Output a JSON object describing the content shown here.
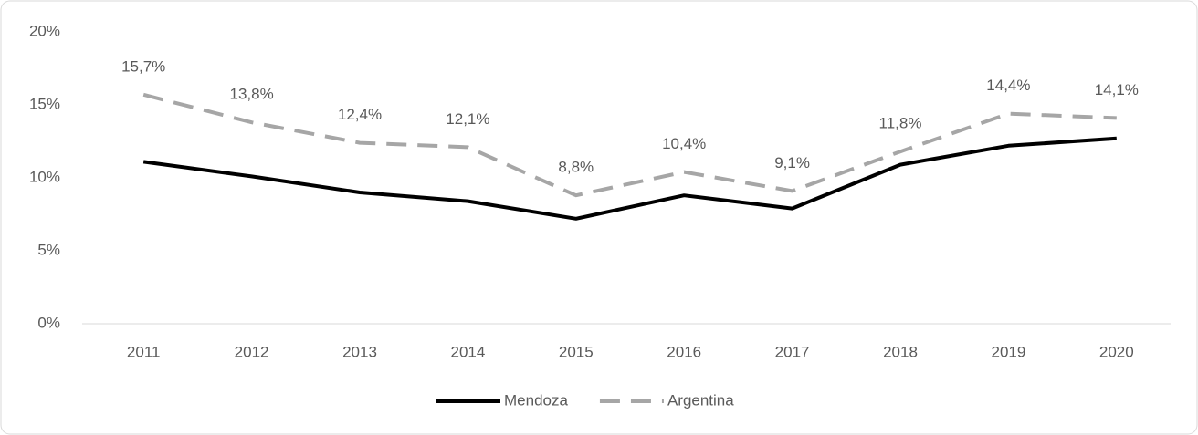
{
  "chart_data": {
    "type": "line",
    "categories": [
      "2011",
      "2012",
      "2013",
      "2014",
      "2015",
      "2016",
      "2017",
      "2018",
      "2019",
      "2020"
    ],
    "series": [
      {
        "name": "Mendoza",
        "color": "#000000",
        "dashed": false,
        "values": [
          11.1,
          10.1,
          9.0,
          8.4,
          7.2,
          8.8,
          7.9,
          10.9,
          12.2,
          12.7
        ]
      },
      {
        "name": "Argentina",
        "color": "#a6a6a6",
        "dashed": true,
        "values": [
          15.7,
          13.8,
          12.4,
          12.1,
          8.8,
          10.4,
          9.1,
          11.8,
          14.4,
          14.1
        ],
        "value_labels": [
          "15,7%",
          "13,8%",
          "12,4%",
          "12,1%",
          "8,8%",
          "10,4%",
          "9,1%",
          "11,8%",
          "14,4%",
          "14,1%"
        ]
      }
    ],
    "ylim": [
      0,
      20
    ],
    "yticks": [
      {
        "value": 0,
        "label": "0%"
      },
      {
        "value": 5,
        "label": "5%"
      },
      {
        "value": 10,
        "label": "10%"
      },
      {
        "value": 15,
        "label": "15%"
      },
      {
        "value": 20,
        "label": "20%"
      }
    ],
    "grid": false,
    "legend": "bottom"
  }
}
